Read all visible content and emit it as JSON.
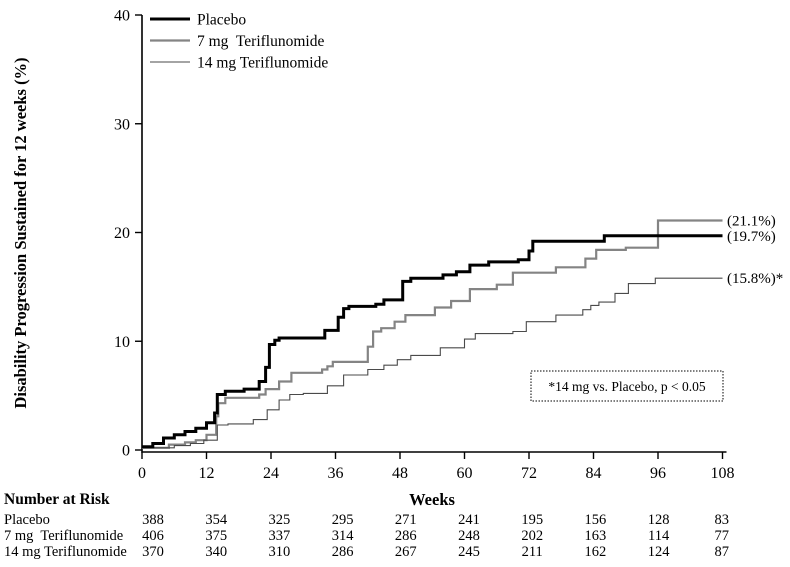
{
  "figure": {
    "background": "#ffffff",
    "annotation": {
      "text": "*14 mg vs. Placebo, p < 0.05"
    },
    "risk_table": {
      "title": "Number at Risk",
      "rows": [
        {
          "label": "Placebo",
          "values": [
            388,
            354,
            325,
            295,
            271,
            241,
            195,
            156,
            128,
            83
          ]
        },
        {
          "label": "7 mg  Teriflunomide",
          "values": [
            406,
            375,
            337,
            314,
            286,
            248,
            202,
            163,
            114,
            77
          ]
        },
        {
          "label": "14 mg Teriflunomide",
          "values": [
            370,
            340,
            310,
            286,
            267,
            245,
            211,
            162,
            124,
            87
          ]
        }
      ]
    }
  },
  "chart_data": {
    "type": "line",
    "subtype": "kaplan-meier-step",
    "title": "",
    "xlabel": "Weeks",
    "ylabel": "Disability Progression Sustained for 12 weeks (%)",
    "xlim": [
      0,
      108
    ],
    "ylim": [
      0,
      40
    ],
    "x_ticks": [
      0,
      12,
      24,
      36,
      48,
      60,
      72,
      84,
      96,
      108
    ],
    "y_ticks": [
      0,
      10,
      20,
      30,
      40
    ],
    "grid": false,
    "legend_position": "top-left",
    "series": [
      {
        "name": "Placebo",
        "color": "#000000",
        "line_width": 3,
        "end_label": "(19.7%)",
        "final_value_pct": 19.7,
        "steps": [
          [
            0,
            0.3
          ],
          [
            2,
            0.6
          ],
          [
            4,
            1.1
          ],
          [
            6,
            1.4
          ],
          [
            8,
            1.7
          ],
          [
            10,
            2.0
          ],
          [
            12,
            2.5
          ],
          [
            13.5,
            3.4
          ],
          [
            14,
            5.1
          ],
          [
            15.5,
            5.4
          ],
          [
            19,
            5.6
          ],
          [
            21.8,
            6.3
          ],
          [
            23,
            7.6
          ],
          [
            23.7,
            9.7
          ],
          [
            24.7,
            10.1
          ],
          [
            25.5,
            10.3
          ],
          [
            34,
            11.0
          ],
          [
            36.5,
            12.2
          ],
          [
            37.5,
            13.0
          ],
          [
            38.5,
            13.2
          ],
          [
            43.5,
            13.4
          ],
          [
            45,
            13.8
          ],
          [
            48.5,
            15.5
          ],
          [
            50,
            15.8
          ],
          [
            56,
            16.1
          ],
          [
            58.5,
            16.4
          ],
          [
            61,
            17.0
          ],
          [
            64.5,
            17.3
          ],
          [
            70,
            17.5
          ],
          [
            72,
            18.3
          ],
          [
            72.7,
            19.2
          ],
          [
            86,
            19.7
          ]
        ]
      },
      {
        "name": "7 mg  Teriflunomide",
        "color": "#848484",
        "line_width": 2.2,
        "end_label": "(21.1%)",
        "final_value_pct": 21.1,
        "steps": [
          [
            0,
            0.2
          ],
          [
            5,
            0.5
          ],
          [
            8,
            0.7
          ],
          [
            10,
            0.9
          ],
          [
            12,
            1.4
          ],
          [
            13.8,
            3.1
          ],
          [
            14.2,
            4.3
          ],
          [
            15.5,
            4.8
          ],
          [
            21.8,
            5.1
          ],
          [
            23,
            5.6
          ],
          [
            25.5,
            6.3
          ],
          [
            27.8,
            7.1
          ],
          [
            33.5,
            7.4
          ],
          [
            34.5,
            7.7
          ],
          [
            35.5,
            8.1
          ],
          [
            42,
            9.5
          ],
          [
            43,
            10.9
          ],
          [
            44.5,
            11.2
          ],
          [
            47,
            11.8
          ],
          [
            49,
            12.4
          ],
          [
            54.5,
            13.1
          ],
          [
            57.5,
            13.7
          ],
          [
            61,
            14.8
          ],
          [
            66,
            15.2
          ],
          [
            69,
            16.3
          ],
          [
            77,
            16.8
          ],
          [
            82.5,
            17.6
          ],
          [
            84.5,
            18.4
          ],
          [
            90,
            18.6
          ],
          [
            96,
            21.1
          ]
        ]
      },
      {
        "name": "14 mg Teriflunomide",
        "color": "#4a4a4a",
        "line_width": 1.1,
        "end_label": "(15.8%)*",
        "final_value_pct": 15.8,
        "steps": [
          [
            0,
            0.2
          ],
          [
            6,
            0.4
          ],
          [
            9,
            0.6
          ],
          [
            11.5,
            0.9
          ],
          [
            14,
            2.3
          ],
          [
            16,
            2.4
          ],
          [
            20.7,
            2.8
          ],
          [
            23.3,
            3.7
          ],
          [
            25.5,
            4.6
          ],
          [
            27.5,
            5.1
          ],
          [
            30,
            5.2
          ],
          [
            34.5,
            5.9
          ],
          [
            37.5,
            6.9
          ],
          [
            42,
            7.4
          ],
          [
            45,
            7.8
          ],
          [
            47.5,
            8.3
          ],
          [
            50,
            8.7
          ],
          [
            55.5,
            9.4
          ],
          [
            60,
            10.2
          ],
          [
            62,
            10.7
          ],
          [
            69,
            10.9
          ],
          [
            71.5,
            11.8
          ],
          [
            77,
            12.4
          ],
          [
            82,
            12.9
          ],
          [
            83.5,
            13.3
          ],
          [
            85,
            13.6
          ],
          [
            88,
            14.4
          ],
          [
            90.5,
            15.3
          ],
          [
            95.5,
            15.8
          ]
        ]
      }
    ]
  }
}
